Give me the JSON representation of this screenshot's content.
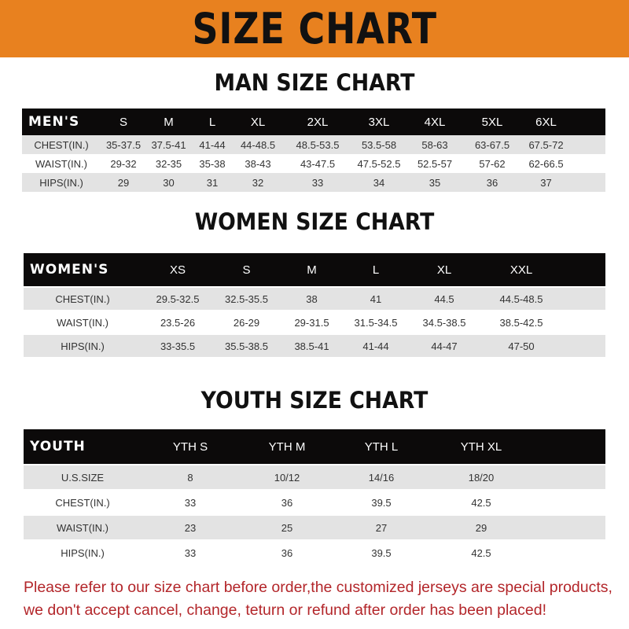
{
  "banner": {
    "title": "SIZE CHART",
    "color": "#e8811f"
  },
  "men": {
    "title": "MAN SIZE CHART",
    "header": [
      "MEN'S",
      "S",
      "M",
      "L",
      "XL",
      "2XL",
      "3XL",
      "4XL",
      "5XL",
      "6XL"
    ],
    "rows": [
      [
        "CHEST(IN.)",
        "35-37.5",
        "37.5-41",
        "41-44",
        "44-48.5",
        "48.5-53.5",
        "53.5-58",
        "58-63",
        "63-67.5",
        "67.5-72"
      ],
      [
        "WAIST(IN.)",
        "29-32",
        "32-35",
        "35-38",
        "38-43",
        "43-47.5",
        "47.5-52.5",
        "52.5-57",
        "57-62",
        "62-66.5"
      ],
      [
        "HIPS(IN.)",
        "29",
        "30",
        "31",
        "32",
        "33",
        "34",
        "35",
        "36",
        "37"
      ]
    ]
  },
  "women": {
    "title": "WOMEN SIZE CHART",
    "header": [
      "WOMEN'S",
      "XS",
      "S",
      "M",
      "L",
      "XL",
      "XXL"
    ],
    "rows": [
      [
        "CHEST(IN.)",
        "29.5-32.5",
        "32.5-35.5",
        "38",
        "41",
        "44.5",
        "44.5-48.5"
      ],
      [
        "WAIST(IN.)",
        "23.5-26",
        "26-29",
        "29-31.5",
        "31.5-34.5",
        "34.5-38.5",
        "38.5-42.5"
      ],
      [
        "HIPS(IN.)",
        "33-35.5",
        "35.5-38.5",
        "38.5-41",
        "41-44",
        "44-47",
        "47-50"
      ]
    ]
  },
  "youth": {
    "title": "YOUTH SIZE CHART",
    "header": [
      "YOUTH",
      "YTH S",
      "YTH M",
      "YTH L",
      "YTH XL"
    ],
    "rows": [
      [
        "U.S.SIZE",
        "8",
        "10/12",
        "14/16",
        "18/20"
      ],
      [
        "CHEST(IN.)",
        "33",
        "36",
        "39.5",
        "42.5"
      ],
      [
        "WAIST(IN.)",
        "23",
        "25",
        "27",
        "29"
      ],
      [
        "HIPS(IN.)",
        "33",
        "36",
        "39.5",
        "42.5"
      ]
    ]
  },
  "notice": {
    "line1": "Please refer to our size chart before order,the customized jerseys are special products,",
    "line2": "we don't accept cancel, change, teturn or refund after order has been placed!",
    "color": "#b3262a"
  }
}
